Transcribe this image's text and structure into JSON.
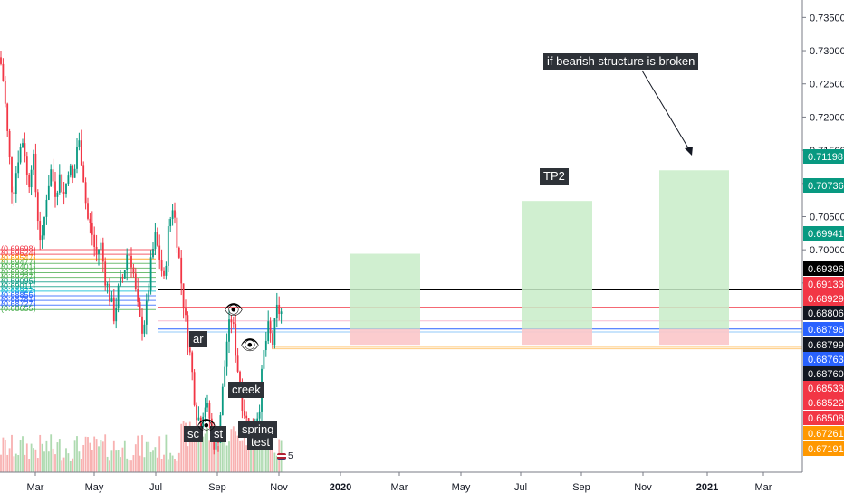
{
  "chart_data": {
    "type": "candlestick",
    "title": "",
    "xlabel": "",
    "ylabel": "",
    "ylim": [
      0.6665,
      0.7375
    ],
    "grid": false,
    "y_ticks": [
      "0.73500",
      "0.73000",
      "0.72500",
      "0.72000",
      "0.71500",
      "0.71000",
      "0.70500",
      "0.70000",
      "0.69500"
    ],
    "x_ticks": [
      {
        "label": "Mar",
        "bold": false
      },
      {
        "label": "May",
        "bold": false
      },
      {
        "label": "Jul",
        "bold": false
      },
      {
        "label": "Sep",
        "bold": false
      },
      {
        "label": "Nov",
        "bold": false
      },
      {
        "label": "2020",
        "bold": true
      },
      {
        "label": "Mar",
        "bold": false
      },
      {
        "label": "May",
        "bold": false
      },
      {
        "label": "Jul",
        "bold": false
      },
      {
        "label": "Sep",
        "bold": false
      },
      {
        "label": "Nov",
        "bold": false
      },
      {
        "label": "2021",
        "bold": true
      },
      {
        "label": "Mar",
        "bold": false
      }
    ],
    "series": [
      {
        "approx_close_path": [
          [
            0,
            0.729
          ],
          [
            4,
            0.725
          ],
          [
            9,
            0.716
          ],
          [
            14,
            0.708
          ],
          [
            20,
            0.714
          ],
          [
            26,
            0.717
          ],
          [
            31,
            0.709
          ],
          [
            36,
            0.715
          ],
          [
            41,
            0.706
          ],
          [
            46,
            0.7
          ],
          [
            51,
            0.708
          ],
          [
            56,
            0.712
          ],
          [
            61,
            0.709
          ],
          [
            66,
            0.711
          ],
          [
            71,
            0.708
          ],
          [
            76,
            0.713
          ],
          [
            81,
            0.71
          ],
          [
            86,
            0.717
          ],
          [
            91,
            0.713
          ],
          [
            96,
            0.705
          ],
          [
            101,
            0.703
          ],
          [
            106,
            0.699
          ],
          [
            111,
            0.701
          ],
          [
            116,
            0.696
          ],
          [
            121,
            0.693
          ],
          [
            126,
            0.69
          ],
          [
            131,
            0.694
          ],
          [
            136,
            0.696
          ],
          [
            141,
            0.7
          ],
          [
            146,
            0.698
          ],
          [
            151,
            0.692
          ],
          [
            156,
            0.688
          ],
          [
            161,
            0.69
          ],
          [
            166,
            0.697
          ],
          [
            171,
            0.702
          ],
          [
            176,
            0.699
          ],
          [
            181,
            0.695
          ],
          [
            186,
            0.703
          ],
          [
            191,
            0.707
          ],
          [
            196,
            0.701
          ],
          [
            201,
            0.694
          ],
          [
            206,
            0.688
          ],
          [
            211,
            0.683
          ],
          [
            216,
            0.676
          ],
          [
            221,
            0.674
          ],
          [
            226,
            0.677
          ],
          [
            231,
            0.675
          ],
          [
            236,
            0.671
          ],
          [
            241,
            0.672
          ],
          [
            246,
            0.679
          ],
          [
            251,
            0.687
          ],
          [
            256,
            0.69
          ],
          [
            261,
            0.684
          ],
          [
            266,
            0.678
          ],
          [
            271,
            0.675
          ],
          [
            276,
            0.672
          ],
          [
            281,
            0.674
          ],
          [
            286,
            0.676
          ],
          [
            291,
            0.684
          ],
          [
            296,
            0.688
          ],
          [
            301,
            0.686
          ],
          [
            306,
            0.691
          ],
          [
            311,
            0.6905
          ]
        ]
      }
    ],
    "price_tags": [
      {
        "value": "0.71198",
        "price": 0.71198,
        "color": "#089981"
      },
      {
        "value": "0.70736",
        "price": 0.70736,
        "color": "#089981"
      },
      {
        "value": "0.69941",
        "price": 0.69941,
        "color": "#089981"
      },
      {
        "value": "0.69396",
        "price": 0.69396,
        "color": "#000000"
      },
      {
        "value": "0.69133",
        "price": 0.69133,
        "color": "#f23645"
      },
      {
        "value": "0.68929",
        "price": 0.68929,
        "color": "#f23645"
      },
      {
        "value": "0.68806",
        "price": 0.68806,
        "color": "#131722"
      },
      {
        "value": "0.68796",
        "price": 0.68796,
        "color": "#2962ff"
      },
      {
        "value": "0.68799",
        "price": 0.68799,
        "color": "#131722"
      },
      {
        "value": "0.68763",
        "price": 0.68763,
        "color": "#2962ff"
      },
      {
        "value": "0.68760",
        "price": 0.6876,
        "color": "#131722"
      },
      {
        "value": "0.68533",
        "price": 0.68533,
        "color": "#f23645"
      },
      {
        "value": "0.68522",
        "price": 0.68522,
        "color": "#f23645"
      },
      {
        "value": "0.68508",
        "price": 0.68508,
        "color": "#f23645"
      },
      {
        "value": "0.67261",
        "price": 0.67261,
        "color": "#ff9800"
      },
      {
        "value": "0.67191",
        "price": 0.67191,
        "color": "#ff9800"
      }
    ],
    "fib_levels": [
      {
        "label": "(0.69698)",
        "color": "#f23645"
      },
      {
        "label": "(0.69624)",
        "color": "#f23645"
      },
      {
        "label": "(0.69547)",
        "color": "#ff9800"
      },
      {
        "label": "(0.69477)",
        "color": "#4caf50"
      },
      {
        "label": "(0.69401)",
        "color": "#4caf50"
      },
      {
        "label": "(0.69331)",
        "color": "#4caf50"
      },
      {
        "label": "(0.69237)",
        "color": "#4caf50"
      },
      {
        "label": "(0.69095)",
        "color": "#089981"
      },
      {
        "label": "(0.69011)",
        "color": "#089981"
      },
      {
        "label": "(0.68922)",
        "color": "#00bcd4"
      },
      {
        "label": "(0.68856)",
        "color": "#2962ff"
      },
      {
        "label": "(0.68781)",
        "color": "#2962ff"
      },
      {
        "label": "(0.68727)",
        "color": "#2962ff"
      },
      {
        "label": "(0.68655)",
        "color": "#4caf50"
      }
    ],
    "reference_lines": [
      {
        "price": 0.69396,
        "color": "#000000"
      },
      {
        "price": 0.69133,
        "color": "#f23645"
      },
      {
        "price": 0.68929,
        "color": "#f8bbd0"
      },
      {
        "price": 0.68806,
        "color": "#2962ff"
      },
      {
        "price": 0.68763,
        "color": "#90caf9"
      },
      {
        "price": 0.68533,
        "color": "#ffcc80"
      },
      {
        "price": 0.68508,
        "color": "#ffcc80"
      }
    ],
    "projection_boxes": [
      {
        "label": "",
        "target": 0.69941,
        "entry": 0.68806,
        "stop": 0.6857,
        "x_from": "Dec 2019",
        "x_to": "Feb 2020"
      },
      {
        "label": "TP2",
        "target": 0.70736,
        "entry": 0.68806,
        "stop": 0.6857,
        "x_from": "Jul 2020",
        "x_to": "Sep 2020"
      },
      {
        "label": "",
        "target": 0.71198,
        "entry": 0.68806,
        "stop": 0.6857,
        "x_from": "Nov 2020",
        "x_to": "Jan 2021"
      }
    ],
    "annotations": {
      "callout": "if bearish structure is broken",
      "tp2": "TP2",
      "ar": "ar",
      "sc": "sc",
      "st": "st",
      "creek": "creek",
      "spring": "spring",
      "test": "test",
      "volume_badge": "5"
    },
    "colors": {
      "up": "#089981",
      "down": "#f23645",
      "up_volume": "#a5d6a7",
      "down_volume": "#f7a9a8",
      "target_zone": "#c8ecc8",
      "stop_zone": "#fbc7c9",
      "label_bg": "#2e3238"
    }
  }
}
